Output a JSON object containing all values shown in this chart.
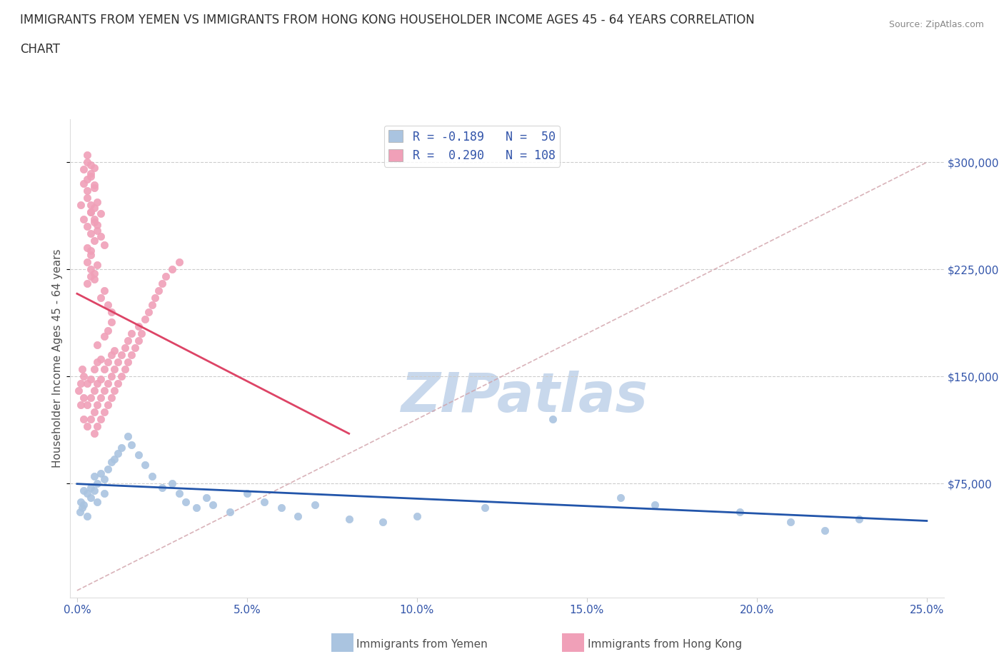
{
  "title": "IMMIGRANTS FROM YEMEN VS IMMIGRANTS FROM HONG KONG HOUSEHOLDER INCOME AGES 45 - 64 YEARS CORRELATION\nCHART",
  "source": "Source: ZipAtlas.com",
  "ylabel": "Householder Income Ages 45 - 64 years",
  "xlim": [
    -0.002,
    0.255
  ],
  "ylim": [
    -5000,
    330000
  ],
  "yticks": [
    75000,
    150000,
    225000,
    300000
  ],
  "ytick_labels": [
    "$75,000",
    "$150,000",
    "$225,000",
    "$300,000"
  ],
  "xticks": [
    0.0,
    0.05,
    0.1,
    0.15,
    0.2,
    0.25
  ],
  "xtick_labels": [
    "0.0%",
    "5.0%",
    "10.0%",
    "15.0%",
    "20.0%",
    "25.0%"
  ],
  "color_yemen": "#aac4e0",
  "color_hongkong": "#f0a0b8",
  "trend_color_yemen": "#2255aa",
  "trend_color_hongkong": "#dd4466",
  "diagonal_color": "#d0a0a8",
  "watermark": "ZIPatlas",
  "watermark_color": "#c8d8ec",
  "title_color": "#303030",
  "axis_label_color": "#505050",
  "tick_color": "#3355aa",
  "background_color": "#ffffff",
  "legend_items": [
    {
      "color": "#aac4e0",
      "text": "R = -0.189   N =  50"
    },
    {
      "color": "#f0a0b8",
      "text": "R =  0.290   N = 108"
    }
  ],
  "bottom_legend": [
    {
      "color": "#aac4e0",
      "label": "Immigrants from Yemen"
    },
    {
      "color": "#f0a0b8",
      "label": "Immigrants from Hong Kong"
    }
  ],
  "yemen_x": [
    0.0008,
    0.001,
    0.0015,
    0.002,
    0.002,
    0.003,
    0.003,
    0.004,
    0.004,
    0.005,
    0.005,
    0.006,
    0.006,
    0.007,
    0.008,
    0.008,
    0.009,
    0.01,
    0.011,
    0.012,
    0.013,
    0.015,
    0.016,
    0.018,
    0.02,
    0.022,
    0.025,
    0.028,
    0.03,
    0.032,
    0.035,
    0.038,
    0.04,
    0.045,
    0.05,
    0.055,
    0.06,
    0.065,
    0.07,
    0.08,
    0.09,
    0.1,
    0.12,
    0.14,
    0.16,
    0.17,
    0.195,
    0.21,
    0.22,
    0.23
  ],
  "yemen_y": [
    55000,
    62000,
    58000,
    70000,
    60000,
    68000,
    52000,
    65000,
    72000,
    70000,
    80000,
    62000,
    75000,
    82000,
    78000,
    68000,
    85000,
    90000,
    92000,
    96000,
    100000,
    108000,
    102000,
    95000,
    88000,
    80000,
    72000,
    75000,
    68000,
    62000,
    58000,
    65000,
    60000,
    55000,
    68000,
    62000,
    58000,
    52000,
    60000,
    50000,
    48000,
    52000,
    58000,
    120000,
    65000,
    60000,
    55000,
    48000,
    42000,
    50000
  ],
  "hk_x": [
    0.0005,
    0.001,
    0.001,
    0.0015,
    0.002,
    0.002,
    0.002,
    0.003,
    0.003,
    0.003,
    0.004,
    0.004,
    0.004,
    0.005,
    0.005,
    0.005,
    0.005,
    0.006,
    0.006,
    0.006,
    0.006,
    0.007,
    0.007,
    0.007,
    0.007,
    0.008,
    0.008,
    0.008,
    0.009,
    0.009,
    0.009,
    0.01,
    0.01,
    0.01,
    0.011,
    0.011,
    0.011,
    0.012,
    0.012,
    0.013,
    0.013,
    0.014,
    0.014,
    0.015,
    0.015,
    0.016,
    0.016,
    0.017,
    0.018,
    0.018,
    0.019,
    0.02,
    0.021,
    0.022,
    0.023,
    0.024,
    0.025,
    0.026,
    0.028,
    0.03,
    0.001,
    0.002,
    0.003,
    0.004,
    0.004,
    0.005,
    0.005,
    0.006,
    0.007,
    0.008,
    0.002,
    0.003,
    0.003,
    0.004,
    0.004,
    0.005,
    0.005,
    0.006,
    0.006,
    0.007,
    0.002,
    0.003,
    0.003,
    0.004,
    0.005,
    0.005,
    0.003,
    0.004,
    0.004,
    0.005,
    0.003,
    0.003,
    0.004,
    0.004,
    0.003,
    0.004,
    0.004,
    0.005,
    0.005,
    0.006,
    0.007,
    0.008,
    0.009,
    0.01,
    0.009,
    0.01,
    0.008,
    0.006
  ],
  "hk_y": [
    140000,
    130000,
    145000,
    155000,
    120000,
    135000,
    150000,
    115000,
    130000,
    145000,
    120000,
    135000,
    148000,
    110000,
    125000,
    140000,
    155000,
    115000,
    130000,
    145000,
    160000,
    120000,
    135000,
    148000,
    162000,
    125000,
    140000,
    155000,
    130000,
    145000,
    160000,
    135000,
    150000,
    165000,
    140000,
    155000,
    168000,
    145000,
    160000,
    150000,
    165000,
    155000,
    170000,
    160000,
    175000,
    165000,
    180000,
    170000,
    175000,
    185000,
    180000,
    190000,
    195000,
    200000,
    205000,
    210000,
    215000,
    220000,
    225000,
    230000,
    270000,
    260000,
    255000,
    265000,
    250000,
    258000,
    245000,
    252000,
    248000,
    242000,
    285000,
    280000,
    275000,
    270000,
    265000,
    260000,
    268000,
    256000,
    272000,
    264000,
    295000,
    288000,
    300000,
    292000,
    284000,
    296000,
    305000,
    298000,
    290000,
    282000,
    230000,
    240000,
    238000,
    235000,
    215000,
    220000,
    225000,
    218000,
    222000,
    228000,
    205000,
    210000,
    200000,
    195000,
    182000,
    188000,
    178000,
    172000
  ]
}
